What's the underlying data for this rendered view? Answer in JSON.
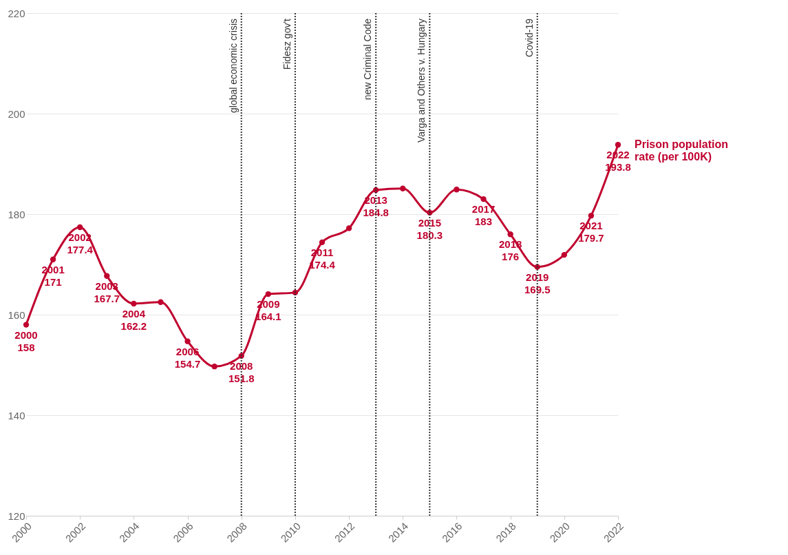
{
  "chart_data": {
    "type": "line",
    "x": [
      2000,
      2001,
      2002,
      2003,
      2004,
      2005,
      2006,
      2007,
      2008,
      2009,
      2010,
      2011,
      2012,
      2013,
      2014,
      2015,
      2016,
      2017,
      2018,
      2019,
      2020,
      2021,
      2022
    ],
    "series": [
      {
        "name": "Prison population rate (per 100K)",
        "color": "#c0002e",
        "values": [
          158,
          171,
          177.4,
          167.7,
          162.2,
          162.5,
          154.7,
          149.7,
          151.8,
          164.1,
          164.4,
          174.4,
          177.2,
          184.8,
          185.1,
          180.3,
          184.9,
          183,
          176,
          169.5,
          171.9,
          179.7,
          193.8
        ],
        "value_labels": [
          "158",
          "171",
          "177.4",
          "167.7",
          "162.2",
          null,
          "154.7",
          null,
          "151.8",
          "164.1",
          null,
          "174.4",
          null,
          "184.8",
          null,
          "180.3",
          null,
          "183",
          "176",
          "169.5",
          null,
          "179.7",
          "193.8"
        ]
      }
    ],
    "xlim": [
      2000,
      2022
    ],
    "xticks": [
      2000,
      2002,
      2004,
      2006,
      2008,
      2010,
      2012,
      2014,
      2016,
      2018,
      2020,
      2022
    ],
    "ylim": [
      120,
      220
    ],
    "yticks": [
      120,
      140,
      160,
      180,
      200,
      220
    ],
    "annotations": [
      {
        "text": "2000",
        "x": 2000,
        "y": 158
      },
      {
        "text": "2001",
        "x": 2001,
        "y": 171
      },
      {
        "text": "2002",
        "x": 2002,
        "y": 177.4
      },
      {
        "text": "2003",
        "x": 2003,
        "y": 167.7
      },
      {
        "text": "2004",
        "x": 2004,
        "y": 162.2
      },
      {
        "text": "2006",
        "x": 2006,
        "y": 154.7
      },
      {
        "text": "2008",
        "x": 2008,
        "y": 151.8
      },
      {
        "text": "2009",
        "x": 2009,
        "y": 164.1
      },
      {
        "text": "2011",
        "x": 2011,
        "y": 174.4
      },
      {
        "text": "2013",
        "x": 2013,
        "y": 184.8
      },
      {
        "text": "2015",
        "x": 2015,
        "y": 180.3
      },
      {
        "text": "2017",
        "x": 2017,
        "y": 183
      },
      {
        "text": "2018",
        "x": 2018,
        "y": 176
      },
      {
        "text": "2019",
        "x": 2019,
        "y": 169.5
      },
      {
        "text": "2021",
        "x": 2021,
        "y": 179.7
      },
      {
        "text": "2022",
        "x": 2022,
        "y": 193.8
      }
    ],
    "grid": "y",
    "marker": "circle",
    "line_style": "solid",
    "legend": false,
    "ref_lines": [
      {
        "axis": "x",
        "value": 2008,
        "label": "global economic crisis",
        "color": "#333333",
        "line_style": "dotted"
      },
      {
        "axis": "x",
        "value": 2010,
        "label": "Fidesz gov't",
        "color": "#333333",
        "line_style": "dotted"
      },
      {
        "axis": "x",
        "value": 2013,
        "label": "new Criminal Code",
        "color": "#333333",
        "line_style": "dotted"
      },
      {
        "axis": "x",
        "value": 2015,
        "label": "Varga and Others v. Hungary",
        "color": "#333333",
        "line_style": "dotted"
      },
      {
        "axis": "x",
        "value": 2019,
        "label": "Covid-19",
        "color": "#333333",
        "line_style": "dotted"
      }
    ]
  }
}
